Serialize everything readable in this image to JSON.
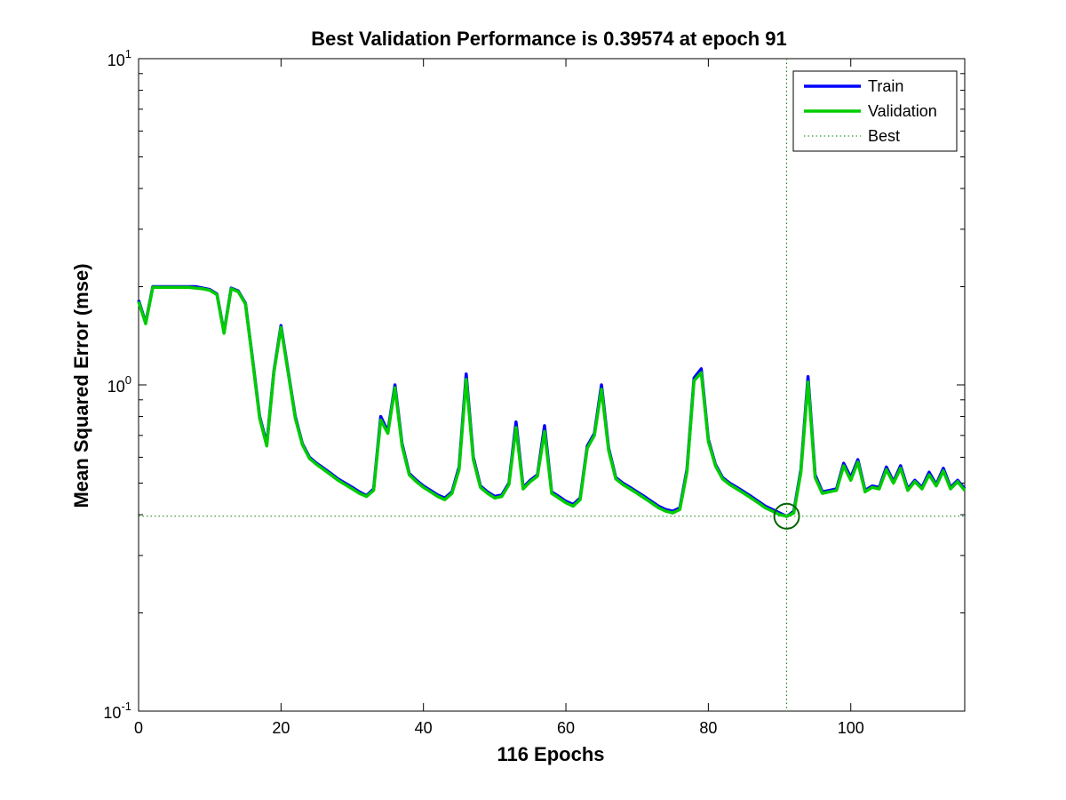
{
  "chart_data": {
    "type": "line",
    "title": "Best Validation Performance is 0.39574 at epoch 91",
    "xlabel": "116 Epochs",
    "ylabel": "Mean Squared Error  (mse)",
    "xlim": [
      0,
      116
    ],
    "ylim": [
      0.1,
      10
    ],
    "yscale": "log",
    "xticks": [
      0,
      20,
      40,
      60,
      80,
      100
    ],
    "yticks": [
      {
        "value": 0.1,
        "base": "10",
        "exp": "-1"
      },
      {
        "value": 1,
        "base": "10",
        "exp": "0"
      },
      {
        "value": 10,
        "base": "10",
        "exp": "1"
      }
    ],
    "grid": false,
    "legend_position": "top-right",
    "best": {
      "epoch": 91,
      "value": 0.39574
    },
    "series": [
      {
        "name": "Train",
        "color": "#0000ff",
        "x": [
          0,
          1,
          2,
          3,
          4,
          5,
          6,
          7,
          8,
          9,
          10,
          11,
          12,
          13,
          14,
          15,
          16,
          17,
          18,
          19,
          20,
          21,
          22,
          23,
          24,
          25,
          26,
          27,
          28,
          29,
          30,
          31,
          32,
          33,
          34,
          35,
          36,
          37,
          38,
          39,
          40,
          41,
          42,
          43,
          44,
          45,
          46,
          47,
          48,
          49,
          50,
          51,
          52,
          53,
          54,
          55,
          56,
          57,
          58,
          59,
          60,
          61,
          62,
          63,
          64,
          65,
          66,
          67,
          68,
          69,
          70,
          71,
          72,
          73,
          74,
          75,
          76,
          77,
          78,
          79,
          80,
          81,
          82,
          83,
          84,
          85,
          86,
          87,
          88,
          89,
          90,
          91,
          92,
          93,
          94,
          95,
          96,
          97,
          98,
          99,
          100,
          101,
          102,
          103,
          104,
          105,
          106,
          107,
          108,
          109,
          110,
          111,
          112,
          113,
          114,
          115,
          116
        ],
        "y": [
          1.82,
          1.55,
          2.0,
          2.0,
          2.0,
          2.0,
          2.0,
          2.0,
          2.0,
          1.98,
          1.96,
          1.9,
          1.45,
          1.98,
          1.94,
          1.78,
          1.2,
          0.8,
          0.66,
          1.1,
          1.52,
          1.1,
          0.8,
          0.66,
          0.6,
          0.575,
          0.555,
          0.535,
          0.515,
          0.5,
          0.485,
          0.47,
          0.458,
          0.48,
          0.8,
          0.72,
          1.0,
          0.66,
          0.535,
          0.51,
          0.49,
          0.475,
          0.46,
          0.45,
          0.47,
          0.56,
          1.08,
          0.6,
          0.49,
          0.47,
          0.455,
          0.46,
          0.5,
          0.77,
          0.485,
          0.51,
          0.53,
          0.75,
          0.47,
          0.455,
          0.44,
          0.43,
          0.45,
          0.65,
          0.71,
          1.0,
          0.64,
          0.52,
          0.5,
          0.485,
          0.47,
          0.455,
          0.44,
          0.425,
          0.415,
          0.41,
          0.42,
          0.55,
          1.05,
          1.12,
          0.68,
          0.57,
          0.52,
          0.5,
          0.485,
          0.47,
          0.455,
          0.44,
          0.425,
          0.415,
          0.405,
          0.395,
          0.41,
          0.55,
          1.06,
          0.53,
          0.47,
          0.475,
          0.48,
          0.575,
          0.52,
          0.59,
          0.475,
          0.49,
          0.485,
          0.56,
          0.505,
          0.565,
          0.48,
          0.51,
          0.485,
          0.54,
          0.495,
          0.555,
          0.485,
          0.51,
          0.48
        ]
      },
      {
        "name": "Validation",
        "color": "#00cc00",
        "x": [
          0,
          1,
          2,
          3,
          4,
          5,
          6,
          7,
          8,
          9,
          10,
          11,
          12,
          13,
          14,
          15,
          16,
          17,
          18,
          19,
          20,
          21,
          22,
          23,
          24,
          25,
          26,
          27,
          28,
          29,
          30,
          31,
          32,
          33,
          34,
          35,
          36,
          37,
          38,
          39,
          40,
          41,
          42,
          43,
          44,
          45,
          46,
          47,
          48,
          49,
          50,
          51,
          52,
          53,
          54,
          55,
          56,
          57,
          58,
          59,
          60,
          61,
          62,
          63,
          64,
          65,
          66,
          67,
          68,
          69,
          70,
          71,
          72,
          73,
          74,
          75,
          76,
          77,
          78,
          79,
          80,
          81,
          82,
          83,
          84,
          85,
          86,
          87,
          88,
          89,
          90,
          91,
          92,
          93,
          94,
          95,
          96,
          97,
          98,
          99,
          100,
          101,
          102,
          103,
          104,
          105,
          106,
          107,
          108,
          109,
          110,
          111,
          112,
          113,
          114,
          115,
          116
        ],
        "y": [
          1.8,
          1.54,
          1.99,
          1.99,
          1.99,
          1.99,
          1.99,
          1.99,
          1.98,
          1.97,
          1.95,
          1.89,
          1.44,
          1.97,
          1.93,
          1.77,
          1.19,
          0.79,
          0.65,
          1.09,
          1.5,
          1.09,
          0.79,
          0.655,
          0.595,
          0.57,
          0.55,
          0.53,
          0.51,
          0.495,
          0.48,
          0.465,
          0.455,
          0.475,
          0.78,
          0.71,
          0.98,
          0.65,
          0.53,
          0.505,
          0.485,
          0.47,
          0.455,
          0.445,
          0.465,
          0.55,
          1.04,
          0.59,
          0.485,
          0.465,
          0.45,
          0.455,
          0.495,
          0.74,
          0.48,
          0.505,
          0.525,
          0.72,
          0.465,
          0.45,
          0.435,
          0.425,
          0.445,
          0.64,
          0.7,
          0.97,
          0.63,
          0.515,
          0.495,
          0.48,
          0.465,
          0.45,
          0.435,
          0.42,
          0.41,
          0.405,
          0.415,
          0.54,
          1.03,
          1.09,
          0.67,
          0.565,
          0.515,
          0.495,
          0.48,
          0.465,
          0.45,
          0.435,
          0.42,
          0.41,
          0.4,
          0.39574,
          0.405,
          0.54,
          1.02,
          0.52,
          0.465,
          0.47,
          0.475,
          0.565,
          0.51,
          0.58,
          0.47,
          0.485,
          0.48,
          0.55,
          0.5,
          0.555,
          0.475,
          0.505,
          0.48,
          0.53,
          0.49,
          0.545,
          0.48,
          0.505,
          0.475
        ]
      },
      {
        "name": "Best",
        "color": "#008000",
        "style": "dotted"
      }
    ]
  }
}
